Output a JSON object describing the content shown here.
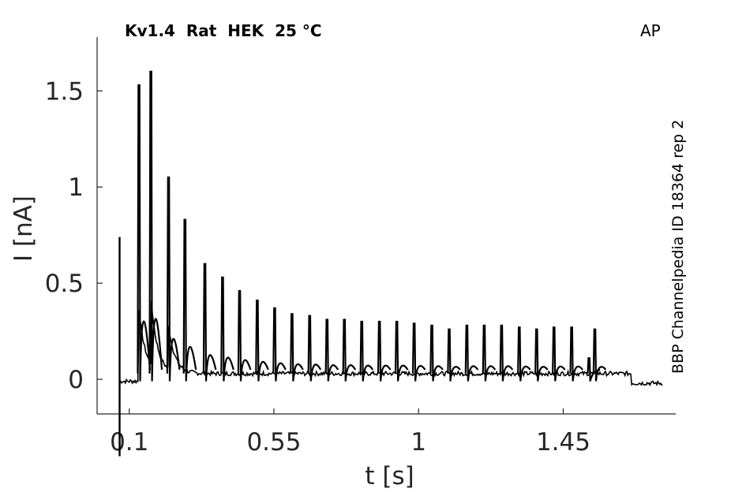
{
  "chart_data": {
    "type": "line",
    "title": "Kv1.4  Rat  HEK  25 °C",
    "protocol": "AP",
    "side_label": "BBP Channelpedia ID 18364 rep 2",
    "xlabel": "t [s]",
    "ylabel": "I [nA]",
    "xlim": [
      0.0,
      1.8
    ],
    "ylim": [
      -0.18,
      1.78
    ],
    "xticks": [
      0.1,
      0.55,
      1,
      1.45
    ],
    "xtick_labels": [
      "0.1",
      "0.55",
      "1",
      "1.45"
    ],
    "yticks": [
      0,
      0.5,
      1,
      1.5
    ],
    "ytick_labels": [
      "0",
      "0.5",
      "1",
      "1.5"
    ],
    "grid": false,
    "legend": "none",
    "line_color": "#000000",
    "artifact": {
      "t": 0.07,
      "i_top": 0.74,
      "i_bottom": -0.4
    },
    "baseline_before": -0.01,
    "baseline_after": -0.02,
    "stim_end_t": 1.66,
    "series": [
      {
        "peak_times": [
          0.13,
          0.167,
          0.222,
          0.273,
          0.335,
          0.39,
          0.443,
          0.498,
          0.552,
          0.606,
          0.661,
          0.715,
          0.769,
          0.823,
          0.878,
          0.932,
          0.986,
          1.041,
          1.095,
          1.15,
          1.204,
          1.258,
          1.313,
          1.367,
          1.421,
          1.476,
          1.53,
          1.548
        ],
        "peak_values": [
          1.53,
          1.6,
          1.05,
          0.83,
          0.6,
          0.53,
          0.46,
          0.41,
          0.37,
          0.34,
          0.33,
          0.31,
          0.31,
          0.3,
          0.3,
          0.3,
          0.29,
          0.28,
          0.26,
          0.28,
          0.28,
          0.28,
          0.27,
          0.26,
          0.27,
          0.27,
          0.11,
          0.26
        ],
        "baseline": 0.03
      }
    ]
  }
}
